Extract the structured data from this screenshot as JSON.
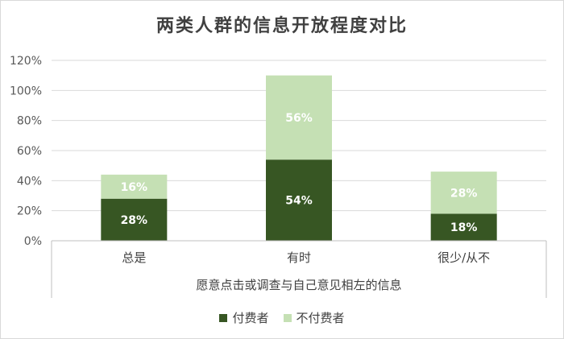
{
  "chart_data": {
    "type": "bar",
    "stacked": true,
    "title": "两类人群的信息开放程度对比",
    "xlabel": "愿意点击或调查与自己意见相左的信息",
    "ylabel": "",
    "categories": [
      "总是",
      "有时",
      "很少/从不"
    ],
    "series": [
      {
        "name": "付费者",
        "values": [
          28,
          54,
          18
        ],
        "color": "#375623",
        "label_color": "#ffffff"
      },
      {
        "name": "不付费者",
        "values": [
          16,
          56,
          28
        ],
        "color": "#c5e0b4",
        "label_color": "#ffffff"
      }
    ],
    "ylim": [
      0,
      120
    ],
    "yticks": [
      0,
      20,
      40,
      60,
      80,
      100,
      120
    ],
    "ytick_labels": [
      "0%",
      "20%",
      "40%",
      "60%",
      "80%",
      "100%",
      "120%"
    ],
    "value_suffix": "%",
    "grid": true,
    "legend_position": "bottom"
  },
  "legend": {
    "items": [
      {
        "label": "付费者",
        "color": "#375623"
      },
      {
        "label": "不付费者",
        "color": "#c5e0b4"
      }
    ]
  }
}
